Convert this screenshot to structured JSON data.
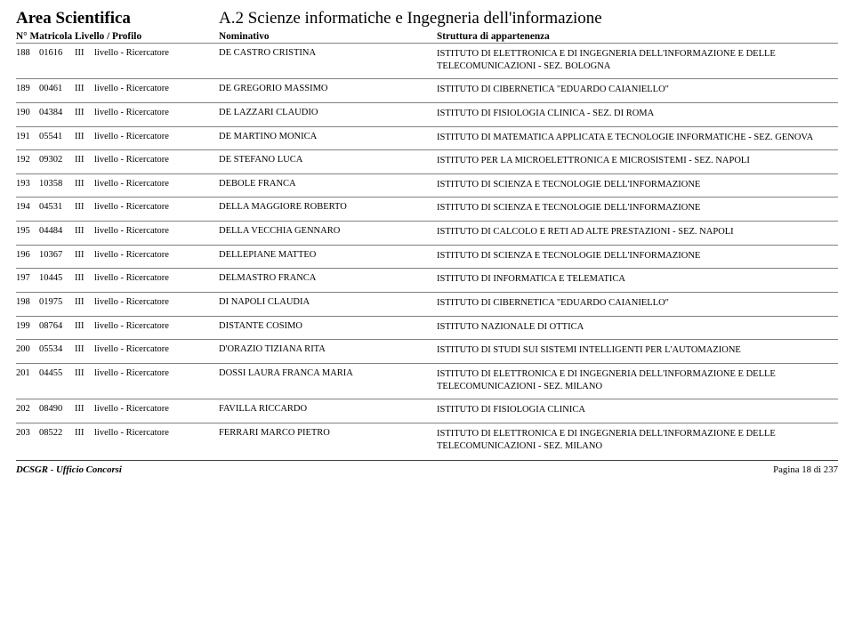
{
  "header": {
    "area_title": "Area Scientifica",
    "area_sub": "A.2  Scienze informatiche e Ingegneria dell'informazione",
    "col_left": "N°  Matricola  Livello / Profilo",
    "col_mid": "Nominativo",
    "col_right": "Struttura di appartenenza"
  },
  "rows": [
    {
      "n": "188",
      "mat": "01616",
      "liv": "III",
      "prof": "livello - Ricercatore",
      "nom": "DE CASTRO CRISTINA",
      "str": "ISTITUTO DI ELETTRONICA E DI INGEGNERIA DELL'INFORMAZIONE E DELLE TELECOMUNICAZIONI - SEZ. BOLOGNA"
    },
    {
      "n": "189",
      "mat": "00461",
      "liv": "III",
      "prof": "livello - Ricercatore",
      "nom": "DE GREGORIO MASSIMO",
      "str": "ISTITUTO DI CIBERNETICA \"EDUARDO CAIANIELLO\""
    },
    {
      "n": "190",
      "mat": "04384",
      "liv": "III",
      "prof": "livello - Ricercatore",
      "nom": "DE LAZZARI CLAUDIO",
      "str": "ISTITUTO DI FISIOLOGIA CLINICA - SEZ. DI ROMA"
    },
    {
      "n": "191",
      "mat": "05541",
      "liv": "III",
      "prof": "livello - Ricercatore",
      "nom": "DE MARTINO MONICA",
      "str": "ISTITUTO DI MATEMATICA APPLICATA E TECNOLOGIE INFORMATICHE - SEZ. GENOVA"
    },
    {
      "n": "192",
      "mat": "09302",
      "liv": "III",
      "prof": "livello - Ricercatore",
      "nom": "DE STEFANO LUCA",
      "str": "ISTITUTO PER LA MICROELETTRONICA E MICROSISTEMI - SEZ. NAPOLI"
    },
    {
      "n": "193",
      "mat": "10358",
      "liv": "III",
      "prof": "livello - Ricercatore",
      "nom": "DEBOLE FRANCA",
      "str": "ISTITUTO DI SCIENZA E TECNOLOGIE DELL'INFORMAZIONE"
    },
    {
      "n": "194",
      "mat": "04531",
      "liv": "III",
      "prof": "livello - Ricercatore",
      "nom": "DELLA MAGGIORE ROBERTO",
      "str": "ISTITUTO DI SCIENZA E TECNOLOGIE DELL'INFORMAZIONE"
    },
    {
      "n": "195",
      "mat": "04484",
      "liv": "III",
      "prof": "livello - Ricercatore",
      "nom": "DELLA VECCHIA GENNARO",
      "str": "ISTITUTO DI CALCOLO E RETI AD ALTE PRESTAZIONI - SEZ. NAPOLI"
    },
    {
      "n": "196",
      "mat": "10367",
      "liv": "III",
      "prof": "livello - Ricercatore",
      "nom": "DELLEPIANE MATTEO",
      "str": "ISTITUTO DI SCIENZA E TECNOLOGIE DELL'INFORMAZIONE"
    },
    {
      "n": "197",
      "mat": "10445",
      "liv": "III",
      "prof": "livello - Ricercatore",
      "nom": "DELMASTRO FRANCA",
      "str": "ISTITUTO DI INFORMATICA E TELEMATICA"
    },
    {
      "n": "198",
      "mat": "01975",
      "liv": "III",
      "prof": "livello - Ricercatore",
      "nom": "DI NAPOLI CLAUDIA",
      "str": "ISTITUTO DI CIBERNETICA \"EDUARDO CAIANIELLO\""
    },
    {
      "n": "199",
      "mat": "08764",
      "liv": "III",
      "prof": "livello - Ricercatore",
      "nom": "DISTANTE COSIMO",
      "str": "ISTITUTO NAZIONALE DI OTTICA"
    },
    {
      "n": "200",
      "mat": "05534",
      "liv": "III",
      "prof": "livello - Ricercatore",
      "nom": "D'ORAZIO TIZIANA RITA",
      "str": "ISTITUTO DI STUDI SUI SISTEMI INTELLIGENTI PER L'AUTOMAZIONE"
    },
    {
      "n": "201",
      "mat": "04455",
      "liv": "III",
      "prof": "livello - Ricercatore",
      "nom": "DOSSI LAURA FRANCA MARIA",
      "str": "ISTITUTO DI ELETTRONICA E DI INGEGNERIA DELL'INFORMAZIONE E DELLE TELECOMUNICAZIONI - SEZ. MILANO"
    },
    {
      "n": "202",
      "mat": "08490",
      "liv": "III",
      "prof": "livello - Ricercatore",
      "nom": "FAVILLA RICCARDO",
      "str": "ISTITUTO DI FISIOLOGIA CLINICA"
    },
    {
      "n": "203",
      "mat": "08522",
      "liv": "III",
      "prof": "livello - Ricercatore",
      "nom": "FERRARI MARCO PIETRO",
      "str": "ISTITUTO DI ELETTRONICA E DI INGEGNERIA DELL'INFORMAZIONE E DELLE TELECOMUNICAZIONI - SEZ. MILANO"
    }
  ],
  "footer": {
    "left": "DCSGR - Ufficio Concorsi",
    "right": "Pagina 18 di 237"
  }
}
